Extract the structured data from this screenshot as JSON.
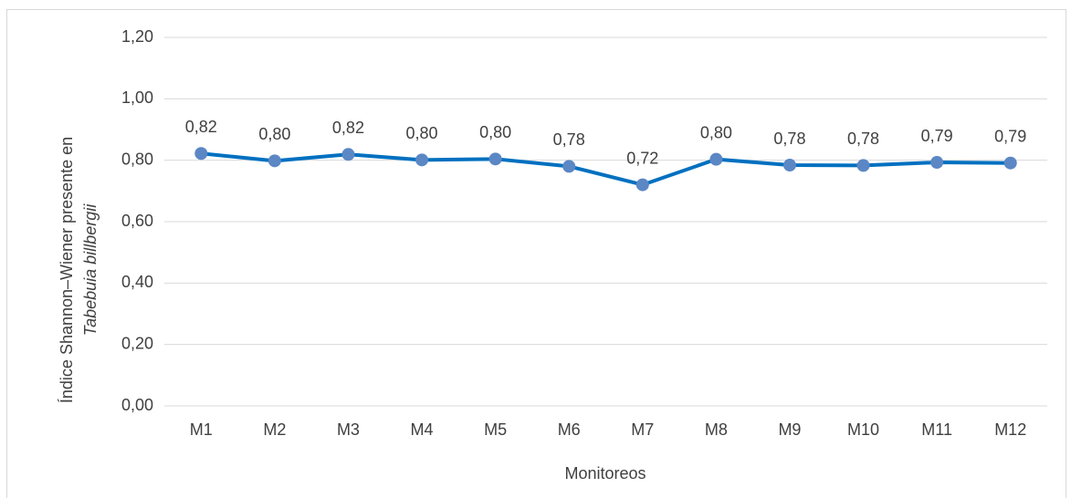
{
  "chart_data": {
    "type": "line",
    "ylabel": [
      "Índice Shannon–Wiener presente en",
      "Tabebuia billbergii"
    ],
    "xlabel": "Monitoreos",
    "categories": [
      "M1",
      "M2",
      "M3",
      "M4",
      "M5",
      "M6",
      "M7",
      "M8",
      "M9",
      "M10",
      "M11",
      "M12"
    ],
    "series": [
      {
        "name": "Índice Shannon–Wiener",
        "color": "#0070c0",
        "marker_color": "#5b87c5",
        "values": [
          0.822,
          0.798,
          0.819,
          0.801,
          0.804,
          0.78,
          0.72,
          0.803,
          0.784,
          0.783,
          0.793,
          0.791
        ],
        "value_labels": [
          "0,82",
          "0,80",
          "0,82",
          "0,80",
          "0,80",
          "0,78",
          "0,72",
          "0,80",
          "0,78",
          "0,78",
          "0,79",
          "0,79"
        ]
      }
    ],
    "ylim": [
      0,
      1.2
    ],
    "yticks": [
      {
        "value": 0,
        "label": "0,00"
      },
      {
        "value": 0.2,
        "label": "0,20"
      },
      {
        "value": 0.4,
        "label": "0,40"
      },
      {
        "value": 0.6,
        "label": "0,60"
      },
      {
        "value": 0.8,
        "label": "0,80"
      },
      {
        "value": 1.0,
        "label": "1,00"
      },
      {
        "value": 1.2,
        "label": "1,20"
      }
    ],
    "grid": true
  }
}
